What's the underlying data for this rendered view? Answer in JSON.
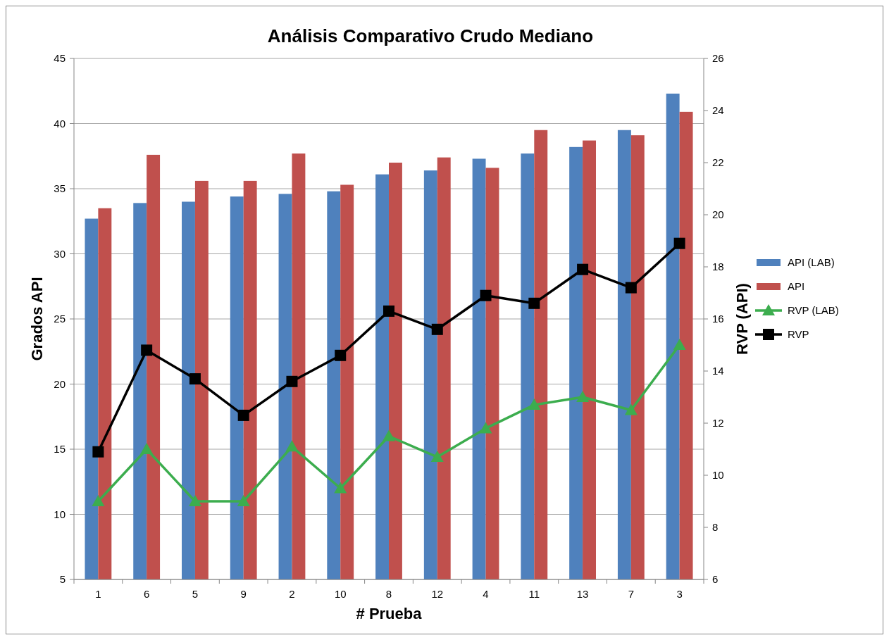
{
  "chart_data": {
    "type": "bar",
    "title": "Análisis Comparativo Crudo Mediano",
    "xlabel": "# Prueba",
    "ylabel": "Grados API",
    "y2label": "RVP (API)",
    "categories": [
      "1",
      "6",
      "5",
      "9",
      "2",
      "10",
      "8",
      "12",
      "4",
      "11",
      "13",
      "7",
      "3"
    ],
    "series": [
      {
        "name": "API (LAB)",
        "color": "#4f81bd",
        "values": [
          32.7,
          33.9,
          34.0,
          34.4,
          34.6,
          34.8,
          36.1,
          36.4,
          37.3,
          37.7,
          38.2,
          39.5,
          42.3
        ]
      },
      {
        "name": "API",
        "color": "#c0504d",
        "values": [
          33.5,
          37.6,
          35.6,
          35.6,
          37.7,
          35.3,
          37.0,
          37.4,
          36.6,
          39.5,
          38.7,
          39.1,
          40.9
        ]
      },
      {
        "name": "RVP (LAB)",
        "type": "line",
        "axis": "y2",
        "marker": "triangle",
        "color": "#3cad4e",
        "values": [
          9.0,
          11.0,
          9.0,
          9.0,
          11.1,
          9.5,
          11.5,
          10.7,
          11.8,
          12.7,
          13.0,
          12.5,
          15.0
        ]
      },
      {
        "name": "RVP",
        "type": "line",
        "axis": "y2",
        "marker": "square",
        "color": "#000000",
        "values": [
          10.9,
          14.8,
          13.7,
          12.3,
          13.6,
          14.6,
          16.3,
          15.6,
          16.9,
          16.6,
          17.9,
          17.2,
          18.9
        ]
      }
    ],
    "ylim": [
      5,
      45
    ],
    "yticks": [
      5,
      10,
      15,
      20,
      25,
      30,
      35,
      40,
      45
    ],
    "y2lim": [
      6,
      26
    ],
    "y2ticks": [
      6,
      8,
      10,
      12,
      14,
      16,
      18,
      20,
      22,
      24,
      26
    ],
    "grid": "y",
    "legend": "right"
  }
}
